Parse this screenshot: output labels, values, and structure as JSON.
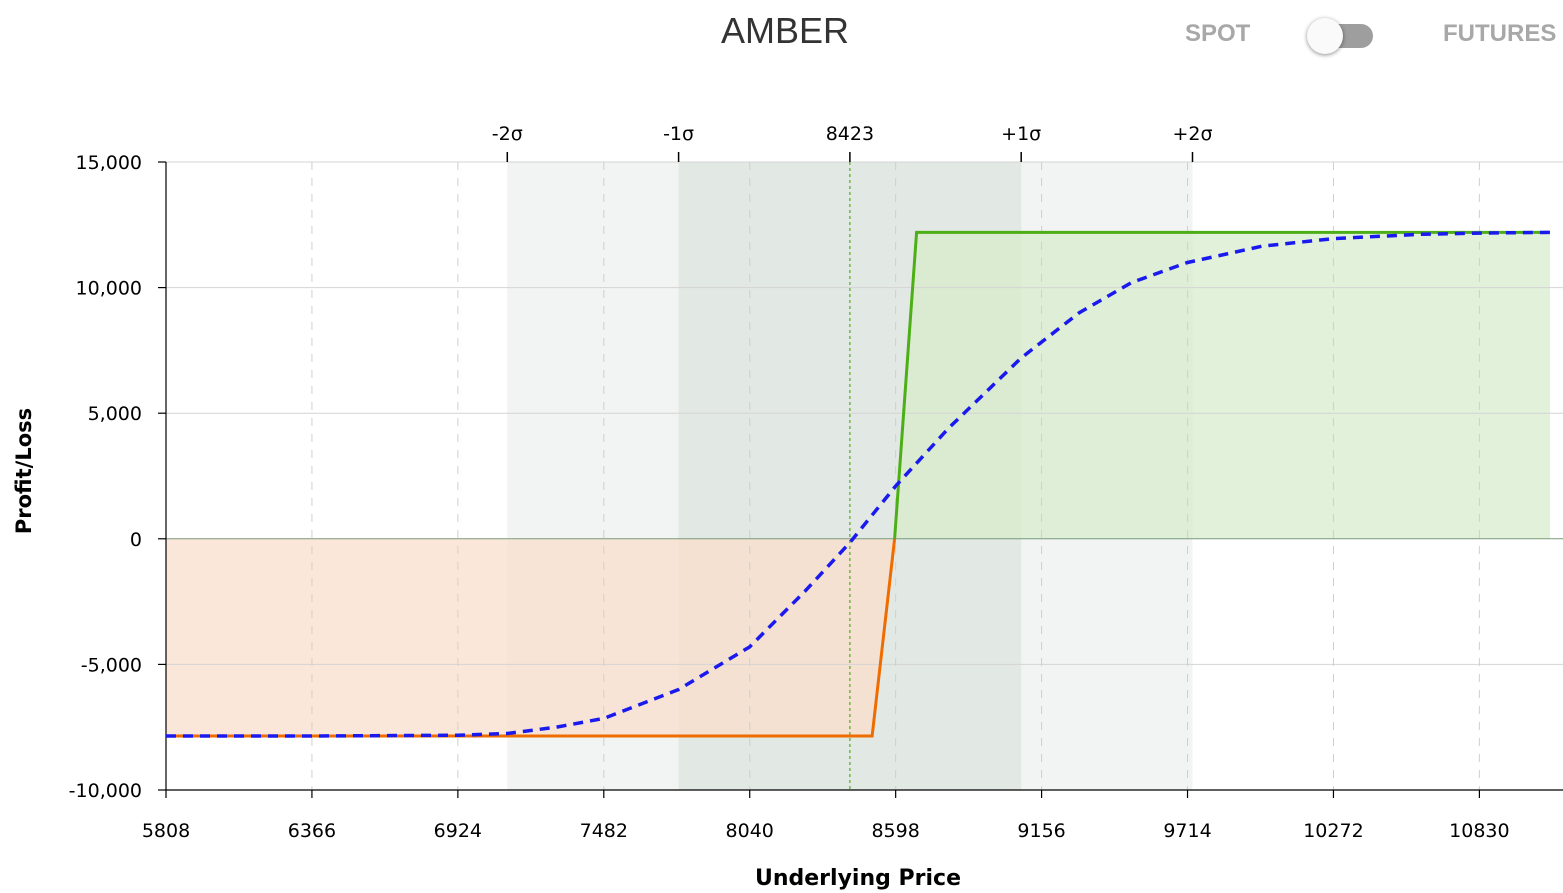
{
  "header": {
    "title": "AMBER",
    "spot_label": "SPOT",
    "futures_label": "FUTURES",
    "toggle_state": "spot"
  },
  "chart_data": {
    "type": "line",
    "xlabel": "Underlying Price",
    "ylabel": "Profit/Loss",
    "xlim": [
      5808,
      11100
    ],
    "ylim": [
      -10000,
      15000
    ],
    "x_ticks": [
      5808,
      6366,
      6924,
      7482,
      8040,
      8598,
      9156,
      9714,
      10272,
      10830
    ],
    "y_ticks": [
      {
        "value": -10000,
        "label": "-10,000"
      },
      {
        "value": -5000,
        "label": "-5,000"
      },
      {
        "value": 0,
        "label": "0"
      },
      {
        "value": 5000,
        "label": "5,000"
      },
      {
        "value": 10000,
        "label": "10,000"
      },
      {
        "value": 15000,
        "label": "15,000"
      }
    ],
    "top_axis": [
      {
        "value": 7113,
        "label": "-2σ"
      },
      {
        "value": 7768,
        "label": "-1σ"
      },
      {
        "value": 8423,
        "label": "8423"
      },
      {
        "value": 9078,
        "label": "+1σ"
      },
      {
        "value": 9733,
        "label": "+2σ"
      }
    ],
    "bands": [
      {
        "from": 7113,
        "to": 9733,
        "color": "#f1f4f2"
      },
      {
        "from": 7768,
        "to": 9078,
        "color": "#e2e8e4"
      }
    ],
    "spot_price": 8423,
    "grid": true,
    "colors": {
      "profit_line": "#4caf16",
      "profit_fill": "#d8eccc",
      "loss_line": "#ef6c00",
      "loss_fill": "#f9dfcc",
      "expected_line": "#1a1aef",
      "spot_line": "#4caf16",
      "band_outer": "#f1f4f2",
      "band_inner": "#e2e8e4"
    },
    "series": [
      {
        "style": "solid",
        "points": [
          [
            5808,
            -7850
          ],
          [
            8508,
            -7850
          ],
          [
            8594,
            0
          ],
          [
            8678,
            12200
          ],
          [
            11100,
            12200
          ]
        ]
      },
      {
        "style": "dashed",
        "points": [
          [
            5808,
            -7850
          ],
          [
            6366,
            -7850
          ],
          [
            6924,
            -7820
          ],
          [
            7113,
            -7750
          ],
          [
            7300,
            -7500
          ],
          [
            7482,
            -7150
          ],
          [
            7768,
            -6000
          ],
          [
            8040,
            -4300
          ],
          [
            8250,
            -2100
          ],
          [
            8423,
            -150
          ],
          [
            8598,
            2100
          ],
          [
            8800,
            4400
          ],
          [
            9078,
            7200
          ],
          [
            9300,
            9000
          ],
          [
            9500,
            10200
          ],
          [
            9714,
            11000
          ],
          [
            10000,
            11650
          ],
          [
            10272,
            11950
          ],
          [
            10600,
            12120
          ],
          [
            10830,
            12170
          ],
          [
            11100,
            12200
          ]
        ]
      }
    ]
  }
}
